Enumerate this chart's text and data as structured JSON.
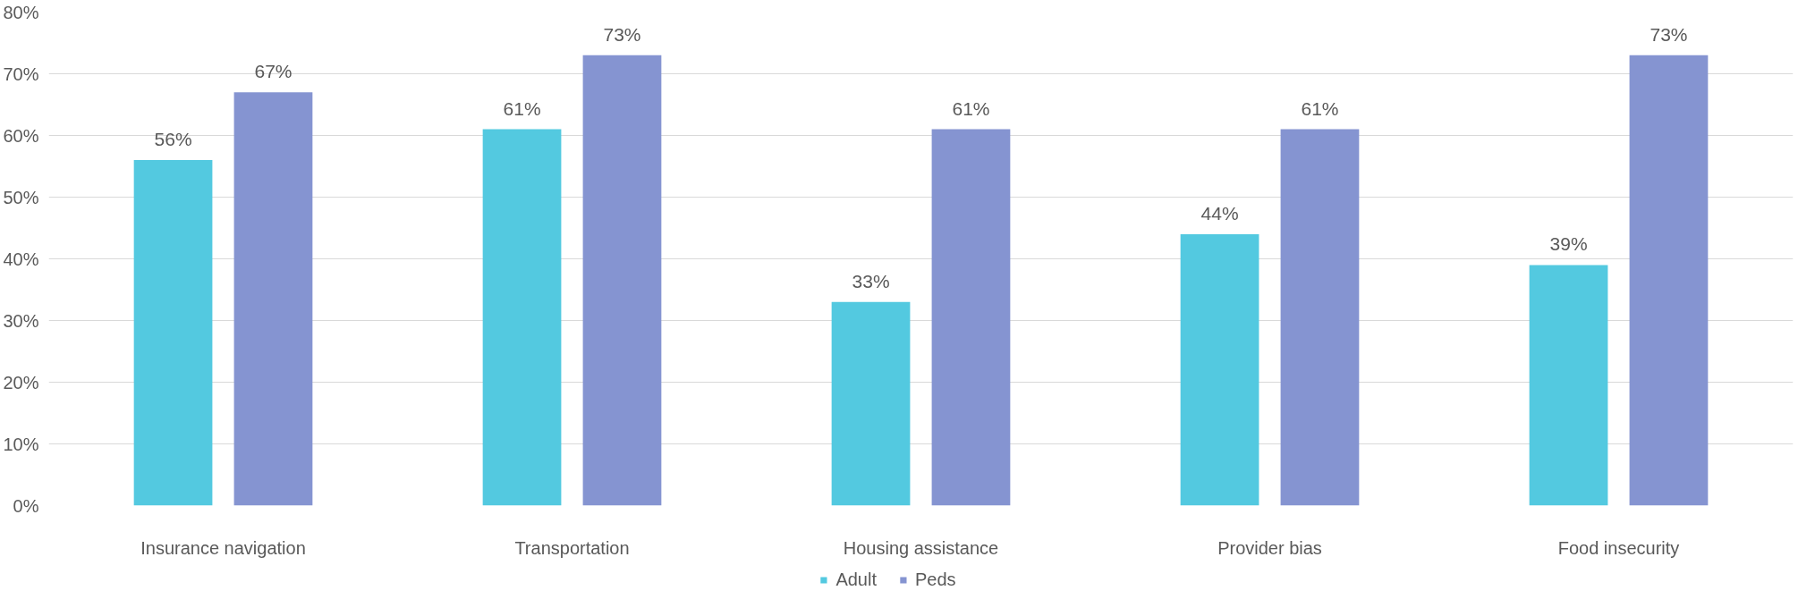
{
  "chart_data": {
    "type": "bar",
    "categories": [
      "Insurance navigation",
      "Transportation",
      "Housing assistance",
      "Provider bias",
      "Food insecurity"
    ],
    "series": [
      {
        "name": "Adult",
        "color": "#53c9e0",
        "values": [
          56,
          61,
          33,
          44,
          39
        ],
        "value_labels": [
          "56%",
          "61%",
          "33%",
          "44%",
          "39%"
        ]
      },
      {
        "name": "Peds",
        "color": "#8594d1",
        "values": [
          67,
          73,
          61,
          61,
          73
        ],
        "value_labels": [
          "67%",
          "73%",
          "61%",
          "61%",
          "73%"
        ]
      }
    ],
    "ylim": [
      0,
      80
    ],
    "yticks": [
      {
        "value": 0,
        "label": "0%"
      },
      {
        "value": 10,
        "label": "10%"
      },
      {
        "value": 20,
        "label": "20%"
      },
      {
        "value": 30,
        "label": "30%"
      },
      {
        "value": 40,
        "label": "40%"
      },
      {
        "value": 50,
        "label": "50%"
      },
      {
        "value": 60,
        "label": "60%"
      },
      {
        "value": 70,
        "label": "70%"
      },
      {
        "value": 80,
        "label": "80%"
      }
    ],
    "grid": "y",
    "legend": "bottom"
  }
}
